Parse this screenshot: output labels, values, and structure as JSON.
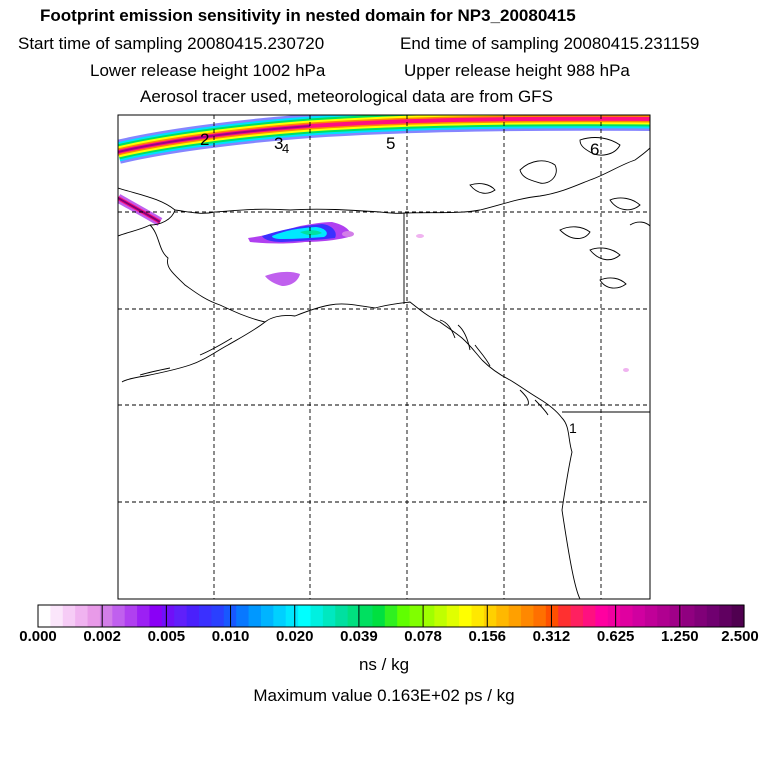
{
  "title": "Footprint emission sensitivity in nested domain for NP3_20080415",
  "sampling": {
    "start_label": "Start time of sampling 20080415.230720",
    "end_label": "End time of sampling 20080415.231159"
  },
  "release": {
    "lower_label": "Lower release height 1002 hPa",
    "upper_label": "Upper release height  988 hPa"
  },
  "tracer_label": "Aerosol tracer used, meteorological data are from GFS",
  "track_labels": [
    "2",
    "3",
    "4",
    "5",
    "6",
    "1"
  ],
  "colorbar": {
    "tick_labels": [
      "0.000",
      "0.002",
      "0.005",
      "0.010",
      "0.020",
      "0.039",
      "0.078",
      "0.156",
      "0.312",
      "0.625",
      "1.250",
      "2.500"
    ],
    "colors": [
      "#ffffff",
      "#fbe6fb",
      "#f6ccf6",
      "#f0b3f0",
      "#e89ae8",
      "#d27ee8",
      "#c060ee",
      "#b040f0",
      "#9c20f4",
      "#8a00f6",
      "#7010f8",
      "#6020fa",
      "#4a20fc",
      "#3a30ff",
      "#2a40ff",
      "#1858ff",
      "#0878ff",
      "#0098ff",
      "#00b4ff",
      "#00d0ff",
      "#00e8ff",
      "#00ffff",
      "#00f0e0",
      "#00e8c0",
      "#00e0a0",
      "#00e080",
      "#00e060",
      "#00e040",
      "#30f020",
      "#60ff00",
      "#80ff00",
      "#a0ff00",
      "#c0ff00",
      "#e0ff00",
      "#ffff00",
      "#ffe800",
      "#ffd000",
      "#ffb800",
      "#ffa000",
      "#ff8800",
      "#ff7000",
      "#ff5000",
      "#ff3030",
      "#ff2060",
      "#ff1080",
      "#ff00a0",
      "#f000a0",
      "#e000a0",
      "#d000a0",
      "#c00098",
      "#b00090",
      "#a00088",
      "#900080",
      "#800078",
      "#700070",
      "#600060",
      "#500050"
    ],
    "units": "ns / kg"
  },
  "max_value_label": "Maximum value  0.163E+02 ps / kg"
}
